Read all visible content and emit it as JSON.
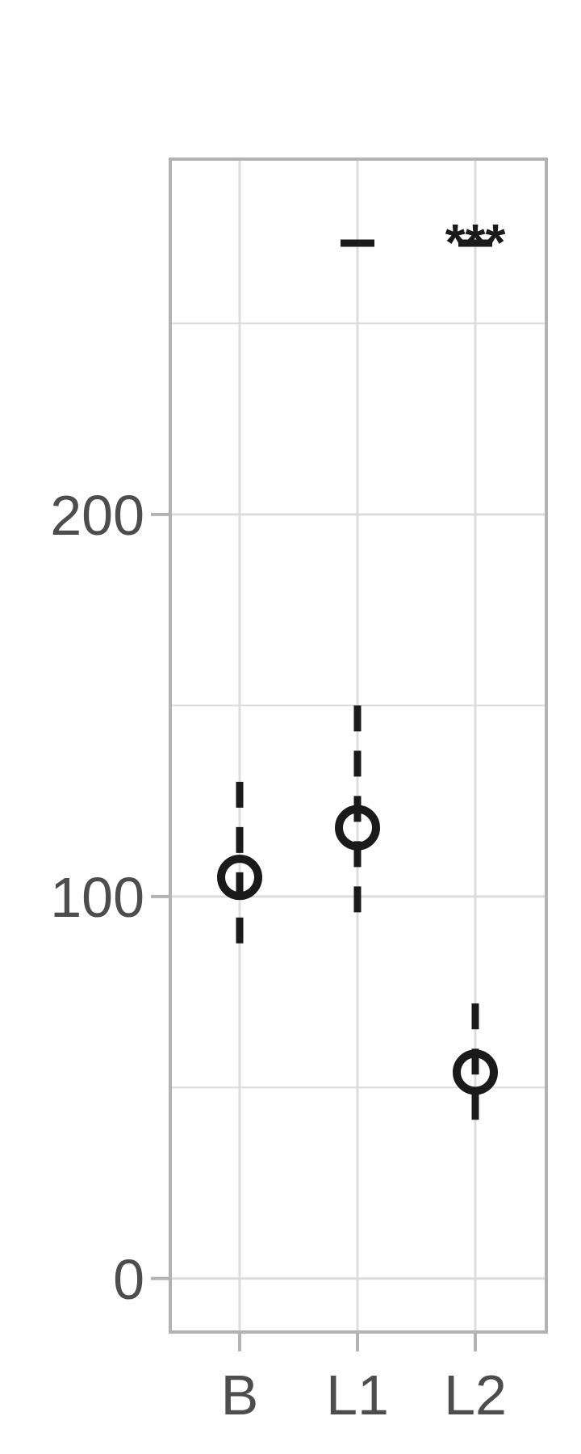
{
  "chart_data": {
    "type": "scatter",
    "title": "",
    "xlabel": "",
    "ylabel": "",
    "categories": [
      "B",
      "L1",
      "L2"
    ],
    "series": [
      {
        "points": [
          {
            "category": "B",
            "y": 105,
            "lower": 83,
            "upper": 130
          },
          {
            "category": "L1",
            "y": 118,
            "lower": 94,
            "upper": 150
          },
          {
            "category": "L2",
            "y": 54,
            "lower": 40,
            "upper": 72
          }
        ]
      }
    ],
    "markers": [
      {
        "category": "L1",
        "y": 271
      },
      {
        "category": "L2",
        "y": 271
      }
    ],
    "annotations": [
      {
        "category": "L2",
        "text": "***"
      }
    ],
    "ylim": [
      -14,
      293
    ],
    "yticks": [
      0,
      100,
      200
    ],
    "y_minor_grid": [
      50,
      150,
      250
    ],
    "grid": true,
    "colors": {
      "marks": "#1a1a1a",
      "grid": "#dcdcdc",
      "border": "#b3b3b3",
      "tick_text": "#4d4d4d"
    }
  }
}
